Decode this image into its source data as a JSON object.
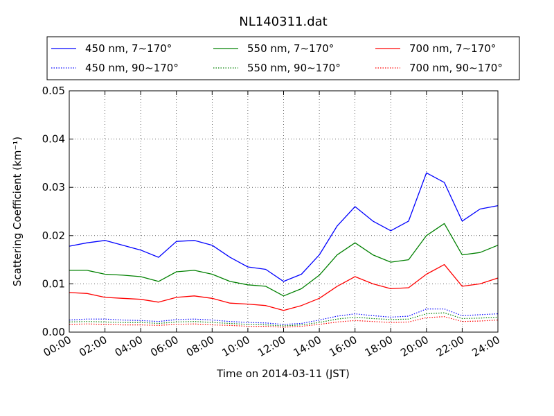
{
  "chart_data": {
    "type": "line",
    "title": "NL140311.dat",
    "xlabel": "Time on 2014-03-11 (JST)",
    "ylabel": "Scattering Coefficient (km⁻¹)",
    "xlim": [
      "00:00",
      "24:00"
    ],
    "ylim": [
      0,
      0.05
    ],
    "grid": true,
    "legend_position": "top",
    "x_ticks": [
      "00:00",
      "02:00",
      "04:00",
      "06:00",
      "08:00",
      "10:00",
      "12:00",
      "14:00",
      "16:00",
      "18:00",
      "20:00",
      "22:00",
      "24:00"
    ],
    "y_ticks": [
      "0.00",
      "0.01",
      "0.02",
      "0.03",
      "0.04",
      "0.05"
    ],
    "x": [
      "00:00",
      "01:00",
      "02:00",
      "03:00",
      "04:00",
      "05:00",
      "06:00",
      "07:00",
      "08:00",
      "09:00",
      "10:00",
      "11:00",
      "12:00",
      "13:00",
      "14:00",
      "15:00",
      "16:00",
      "17:00",
      "18:00",
      "19:00",
      "20:00",
      "21:00",
      "22:00",
      "23:00",
      "24:00"
    ],
    "series": [
      {
        "name": "450 nm, 7∼170°",
        "color": "#0000ff",
        "style": "solid",
        "values": [
          0.0178,
          0.0185,
          0.019,
          0.018,
          0.017,
          0.0155,
          0.0188,
          0.019,
          0.018,
          0.0155,
          0.0135,
          0.013,
          0.0105,
          0.012,
          0.016,
          0.022,
          0.026,
          0.023,
          0.021,
          0.023,
          0.033,
          0.031,
          0.023,
          0.0255,
          0.0262
        ]
      },
      {
        "name": "550 nm, 7∼170°",
        "color": "#008000",
        "style": "solid",
        "values": [
          0.0128,
          0.0128,
          0.012,
          0.0118,
          0.0115,
          0.0105,
          0.0125,
          0.0128,
          0.012,
          0.0105,
          0.0098,
          0.0095,
          0.0075,
          0.009,
          0.0118,
          0.016,
          0.0185,
          0.016,
          0.0145,
          0.015,
          0.02,
          0.0225,
          0.016,
          0.0165,
          0.018
        ]
      },
      {
        "name": "700 nm, 7∼170°",
        "color": "#ff0000",
        "style": "solid",
        "values": [
          0.0082,
          0.008,
          0.0072,
          0.007,
          0.0068,
          0.0062,
          0.0072,
          0.0075,
          0.007,
          0.006,
          0.0058,
          0.0055,
          0.0045,
          0.0055,
          0.007,
          0.0095,
          0.0115,
          0.01,
          0.009,
          0.0092,
          0.012,
          0.014,
          0.0095,
          0.01,
          0.0112
        ]
      },
      {
        "name": "450 nm, 90∼170°",
        "color": "#0000ff",
        "style": "dotted",
        "values": [
          0.0025,
          0.0027,
          0.0027,
          0.0025,
          0.0024,
          0.0022,
          0.0026,
          0.0027,
          0.0025,
          0.0022,
          0.002,
          0.0019,
          0.0016,
          0.0018,
          0.0025,
          0.0033,
          0.0038,
          0.0034,
          0.0031,
          0.0033,
          0.0048,
          0.0048,
          0.0034,
          0.0036,
          0.0038
        ]
      },
      {
        "name": "550 nm, 90∼170°",
        "color": "#008000",
        "style": "dotted",
        "values": [
          0.0021,
          0.0022,
          0.0021,
          0.002,
          0.002,
          0.0018,
          0.0021,
          0.0022,
          0.002,
          0.0018,
          0.0016,
          0.0015,
          0.0013,
          0.0015,
          0.002,
          0.0027,
          0.0031,
          0.0028,
          0.0026,
          0.0027,
          0.0038,
          0.004,
          0.0028,
          0.0029,
          0.0031
        ]
      },
      {
        "name": "700 nm, 90∼170°",
        "color": "#ff0000",
        "style": "dotted",
        "values": [
          0.0016,
          0.0017,
          0.0016,
          0.0015,
          0.0015,
          0.0014,
          0.0016,
          0.0017,
          0.0015,
          0.0014,
          0.0012,
          0.0012,
          0.001,
          0.0012,
          0.0016,
          0.0021,
          0.0024,
          0.0022,
          0.002,
          0.0021,
          0.003,
          0.0032,
          0.0022,
          0.0023,
          0.0025
        ]
      }
    ]
  }
}
